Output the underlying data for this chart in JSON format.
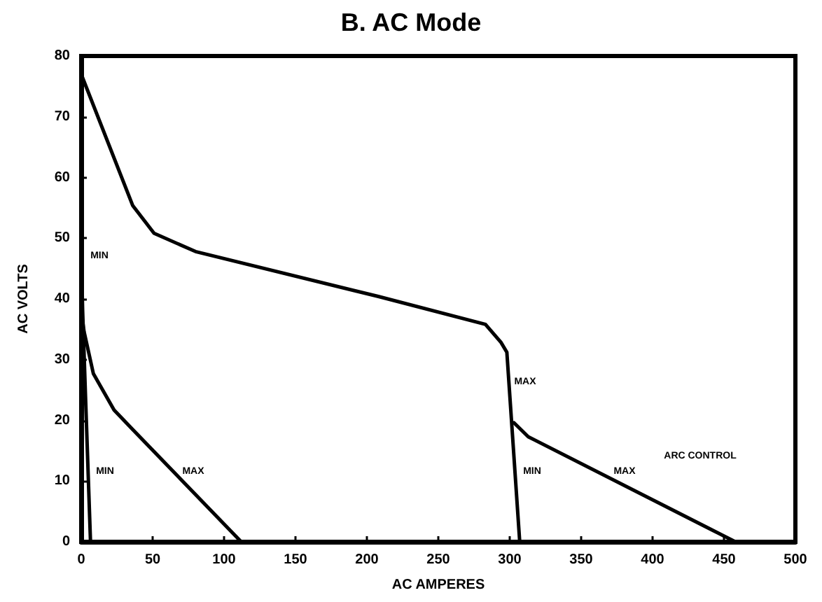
{
  "chart_data": {
    "type": "line",
    "title": "B. AC Mode",
    "xlabel": "AC AMPERES",
    "ylabel": "AC VOLTS",
    "series": [
      {
        "color": "#000000",
        "x": [
          0,
          36,
          51,
          80,
          208,
          283,
          294,
          298,
          307
        ],
        "values": [
          77,
          55.4,
          50.8,
          47.8,
          40.4,
          35.8,
          32.8,
          31.2,
          0
        ]
      },
      {
        "color": "#000000",
        "x": [
          303,
          313,
          458
        ],
        "values": [
          19.6,
          17.3,
          0
        ]
      },
      {
        "color": "#000000",
        "x": [
          0,
          1,
          3,
          6.5
        ],
        "values": [
          48,
          38,
          24,
          0
        ]
      },
      {
        "color": "#000000",
        "x": [
          0,
          2,
          8.5,
          23,
          36,
          112
        ],
        "values": [
          38,
          34.6,
          27.7,
          21.7,
          18.5,
          0
        ]
      }
    ],
    "annotations": [
      "MIN",
      "MIN",
      "MAX",
      "MAX",
      "MIN",
      "MAX",
      "ARC CONTROL"
    ],
    "xlim": [
      0,
      500
    ],
    "xticks": [
      0,
      50,
      100,
      150,
      200,
      250,
      300,
      350,
      400,
      450,
      500
    ],
    "ylim": [
      0,
      80
    ],
    "yticks": [
      0,
      10,
      20,
      30,
      40,
      50,
      60,
      70,
      80
    ],
    "grid": false,
    "marker": "none",
    "line_style": "solid"
  }
}
